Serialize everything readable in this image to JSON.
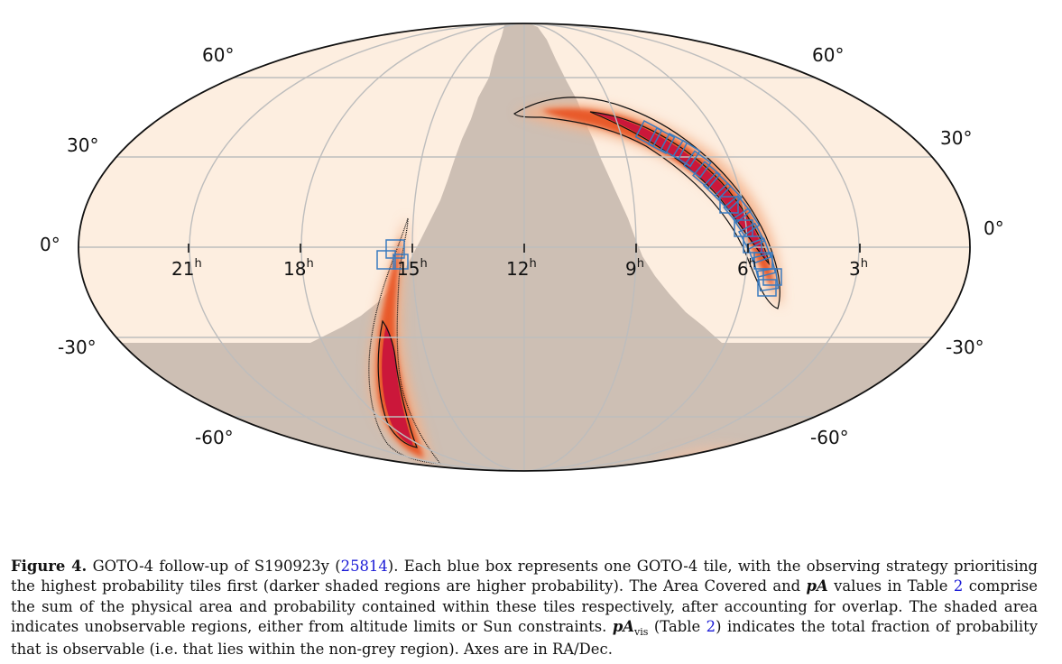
{
  "figure": {
    "dec_labels_left": [
      "60°",
      "30°",
      "0°",
      "-30°",
      "-60°"
    ],
    "dec_labels_right": [
      "60°",
      "30°",
      "0°",
      "-30°",
      "-60°"
    ],
    "ra_labels": [
      "21",
      "18",
      "15",
      "12",
      "9",
      "6",
      "3"
    ],
    "ra_unit": "h",
    "colors": {
      "observable": "#fdeee0",
      "unobservable": "#cdbfb4",
      "probability_high": "#c8103c",
      "probability_mid": "#e8502a",
      "probability_low": "#f5a070",
      "tile": "#3a7bbf",
      "grid": "#bdbdbd"
    }
  },
  "caption": {
    "label": "Figure 4.",
    "part1": " GOTO-4 follow-up of S190923y (",
    "ref1": "25814",
    "part2": "). Each blue box represents one GOTO-4 tile, with the observing strategy prioritising the highest probability tiles first (darker shaded regions are higher probability). The Area Covered and ",
    "pa": "pA",
    "part3": " values in Table ",
    "ref2": "2",
    "part4": " comprise the sum of the physical area and probability contained within these tiles respectively, after accounting for overlap. The shaded area indicates unobservable regions, either from altitude limits or Sun constraints. ",
    "pavis": "pA",
    "pavis_sub": "vis",
    "part5": " (Table ",
    "ref3": "2",
    "part6": ") indicates the total fraction of probability that is observable (i.e. that lies within the non-grey region). Axes are in RA/Dec."
  }
}
